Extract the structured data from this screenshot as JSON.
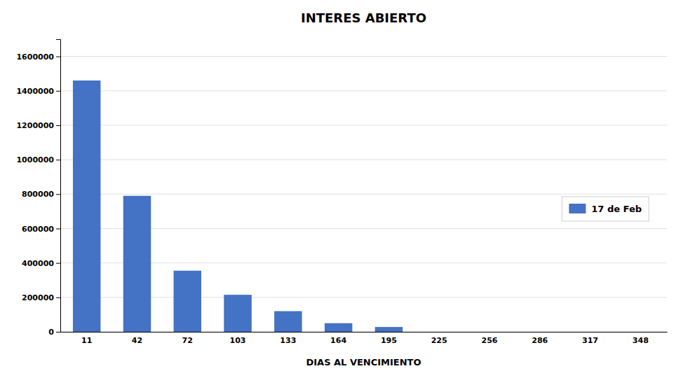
{
  "chart_data": {
    "type": "bar",
    "title": "INTERES ABIERTO",
    "xlabel": "DIAS AL VENCIMIENTO",
    "categories": [
      11,
      42,
      72,
      103,
      133,
      164,
      195,
      225,
      256,
      286,
      317,
      348
    ],
    "series": [
      {
        "name": "17 de Feb",
        "color": "#4472C4",
        "values": [
          1460000,
          790000,
          355000,
          215000,
          120000,
          50000,
          28000,
          0,
          0,
          0,
          0,
          0
        ]
      }
    ],
    "ylim": [
      0,
      1700000
    ],
    "yticks": [
      0,
      200000,
      400000,
      600000,
      800000,
      1000000,
      1200000,
      1400000,
      1600000
    ],
    "grid": true,
    "legend": "right"
  }
}
